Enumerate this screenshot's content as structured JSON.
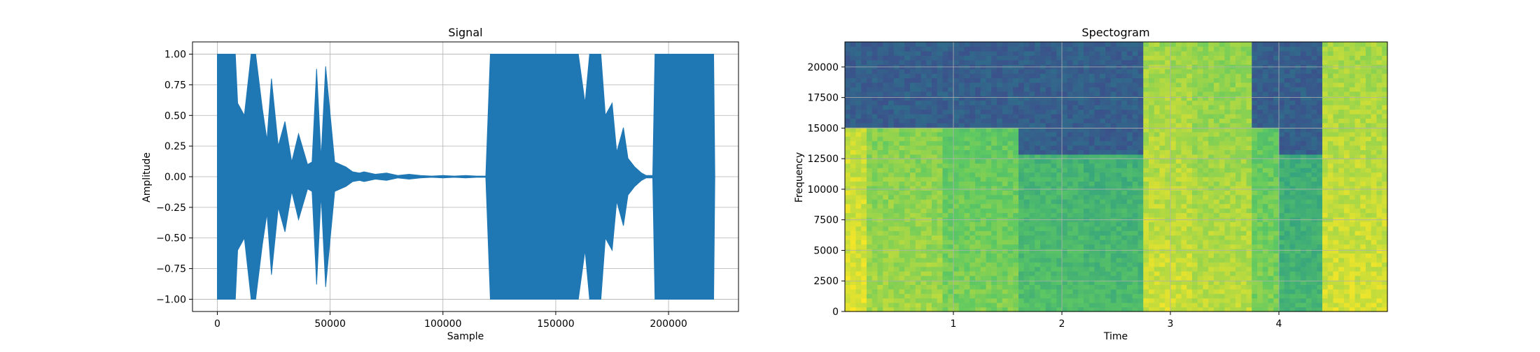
{
  "chart_data": [
    {
      "type": "line",
      "title": "Signal",
      "xlabel": "Sample",
      "ylabel": "Amplitude",
      "xlim": [
        -11000,
        231000
      ],
      "ylim": [
        -1.1,
        1.1
      ],
      "grid": true,
      "color": "#1f77b4",
      "x_ticks": [
        0,
        50000,
        100000,
        150000,
        200000
      ],
      "x_tick_labels": [
        "0",
        "50000",
        "100000",
        "150000",
        "200000"
      ],
      "y_ticks": [
        1.0,
        0.75,
        0.5,
        0.25,
        0.0,
        -0.25,
        -0.5,
        -0.75,
        -1.0
      ],
      "y_tick_labels": [
        "1.00",
        "0.75",
        "0.50",
        "0.25",
        "0.00",
        "−0.25",
        "−0.50",
        "−0.75",
        "−1.00"
      ],
      "envelope": {
        "x": [
          0,
          8000,
          9000,
          12000,
          15000,
          17000,
          20000,
          22000,
          24000,
          27000,
          30000,
          33000,
          36000,
          40000,
          42000,
          44000,
          46000,
          48000,
          52000,
          57000,
          60000,
          63000,
          65000,
          70000,
          75000,
          80000,
          85000,
          90000,
          95000,
          100000,
          105000,
          110000,
          115000,
          119000,
          121000,
          160000,
          163000,
          165000,
          170000,
          172000,
          175000,
          177000,
          180000,
          182000,
          185000,
          188000,
          190000,
          193000,
          194000,
          220000,
          220500
        ],
        "upper": [
          1.0,
          1.0,
          0.6,
          0.5,
          1.0,
          1.0,
          0.55,
          0.3,
          0.8,
          0.25,
          0.45,
          0.12,
          0.35,
          0.1,
          0.12,
          0.88,
          0.15,
          0.9,
          0.12,
          0.08,
          0.04,
          0.03,
          0.04,
          0.02,
          0.03,
          0.01,
          0.02,
          0.01,
          0.005,
          0.01,
          0.005,
          0.01,
          0.005,
          0.005,
          1.0,
          1.0,
          0.6,
          1.0,
          1.0,
          0.5,
          0.6,
          0.2,
          0.4,
          0.15,
          0.08,
          0.03,
          0.01,
          0.01,
          1.0,
          1.0,
          0.0
        ],
        "lower": [
          -1.0,
          -1.0,
          -0.6,
          -0.5,
          -1.0,
          -1.0,
          -0.55,
          -0.3,
          -0.8,
          -0.25,
          -0.45,
          -0.12,
          -0.35,
          -0.1,
          -0.12,
          -0.88,
          -0.15,
          -0.9,
          -0.12,
          -0.08,
          -0.04,
          -0.03,
          -0.04,
          -0.02,
          -0.03,
          -0.01,
          -0.02,
          -0.01,
          -0.005,
          -0.01,
          -0.005,
          -0.01,
          -0.005,
          -0.005,
          -1.0,
          -1.0,
          -0.6,
          -1.0,
          -1.0,
          -0.5,
          -0.6,
          -0.2,
          -0.4,
          -0.15,
          -0.08,
          -0.03,
          -0.01,
          -0.01,
          -1.0,
          -1.0,
          0.0
        ]
      }
    },
    {
      "type": "heatmap",
      "title": "Spectogram",
      "xlabel": "Time",
      "ylabel": "Frequency",
      "xlim": [
        0,
        5.0
      ],
      "ylim": [
        0,
        22050
      ],
      "grid": true,
      "colormap": "viridis",
      "x_ticks": [
        1,
        2,
        3,
        4
      ],
      "x_tick_labels": [
        "1",
        "2",
        "3",
        "4"
      ],
      "y_ticks": [
        0,
        2500,
        5000,
        7500,
        10000,
        12500,
        15000,
        17500,
        20000
      ],
      "y_tick_labels": [
        "0",
        "2500",
        "5000",
        "7500",
        "10000",
        "12500",
        "15000",
        "17500",
        "20000"
      ],
      "energy_regions": [
        {
          "t": [
            0.0,
            0.2
          ],
          "f": [
            0,
            15000
          ],
          "level": 0.88
        },
        {
          "t": [
            0.2,
            0.9
          ],
          "f": [
            0,
            15000
          ],
          "level": 0.78
        },
        {
          "t": [
            0.9,
            1.6
          ],
          "f": [
            0,
            15000
          ],
          "level": 0.72
        },
        {
          "t": [
            1.6,
            2.2
          ],
          "f": [
            0,
            13000
          ],
          "level": 0.62
        },
        {
          "t": [
            2.2,
            2.75
          ],
          "f": [
            0,
            13000
          ],
          "level": 0.6
        },
        {
          "t": [
            2.75,
            3.2
          ],
          "f": [
            0,
            22050
          ],
          "level": 0.85
        },
        {
          "t": [
            3.2,
            3.75
          ],
          "f": [
            0,
            22050
          ],
          "level": 0.82
        },
        {
          "t": [
            3.75,
            4.0
          ],
          "f": [
            0,
            15000
          ],
          "level": 0.72
        },
        {
          "t": [
            4.0,
            4.4
          ],
          "f": [
            0,
            13000
          ],
          "level": 0.58
        },
        {
          "t": [
            4.4,
            5.0
          ],
          "f": [
            0,
            22050
          ],
          "level": 0.86
        }
      ],
      "background_level": 0.3
    }
  ]
}
